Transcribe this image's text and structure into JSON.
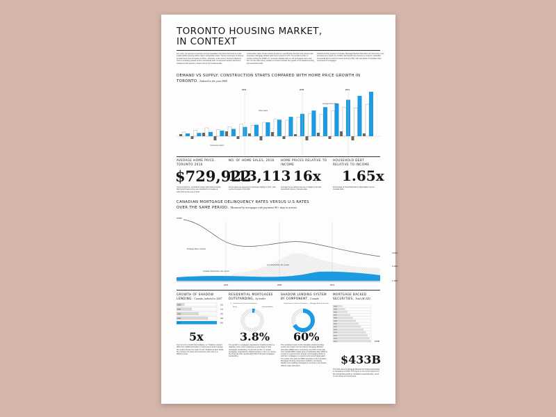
{
  "header": {
    "title_line1": "TORONTO HOUSING MARKET,",
    "title_line2": "IN CONTEXT",
    "intro": [
      "For years, the general consensus among Canadians has been that there is a real estate bubble growing within major metropolitan areas. Toronto continues to witness annual home price increases of 10%+. However, a few recent, housing indicators show a troubling upward trend in household debt, construction activity and home valuations that warrant a closer look at the fundamentals.",
      "construction starts remain steady despite an overall lower demand and interest rate increases. Mortgage default rates hover around 0.17%. To put that number in context, during the 2008 U.S. recession default rates on US mortgages were near 9%. On the other hand, pockets of concern include the growth in the shadow lending and securitized debt.",
      "shadow lending system in Canada. Mortgage Backed Securities are becoming more prevalent as a result. As of 2016, debt levels have become a concern, Canadian household debt to income hovers around 1.65x, with two thirds of Canadian debt comprised of mortgages."
    ]
  },
  "demand_supply": {
    "title": "DEMAND VS SUPPLY: CONSTRUCTION STARTS COMPARED WITH HOME PRICE GROWTH IN TORONTO.",
    "subtitle": "Indexed to the year 2000",
    "year_markers": [
      "2004",
      "2008",
      "2012"
    ],
    "annotations": {
      "construction": "Construction Starts",
      "home_sales": "Home Sales",
      "avg_price": "Average Home Price"
    }
  },
  "stats": [
    {
      "heading": "AVERAGE HOME PRICE, TORONTO 2016",
      "value": "$729,922",
      "desc": "Going forward to, centralized supply will prolong double digit growth were prices are expected to increase at 10%-15% by the end of 2017."
    },
    {
      "heading": "NO. OF HOME SALES, 2016",
      "value": "113,113",
      "desc": "Home sales are expected to decrease slightly in 2017, with a price forecast of 110,000."
    },
    {
      "heading": "HOME PRICES RELATIVE TO INCOME",
      "value": "16x",
      "desc": "Average home selling price as a multiple of annual household income, Canada-wide."
    },
    {
      "heading": "HOUSEHOLD DEBT RELATIVE TO INCOME",
      "value": "1.65x",
      "desc": "Percentage of household debt to disposable income, Canada-wide."
    }
  ],
  "delinquency": {
    "title_line1": "CANADIAN MORTGAGE DELINQUENCY RATES VERSUS U.S RATES",
    "title_line2": "OVER THE SAME PERIOD.",
    "subtitle": "Measured by mortgages with payments 90+ days in arrears",
    "y_left": "0.50%",
    "y_right": [
      "2.60%",
      "2.10%",
      "1.10%"
    ],
    "x_ticks": [
      "2004",
      "2008",
      "2012"
    ],
    "annotations": {
      "mortgage_rates": "Mortgage Rates, Canada",
      "cad_default": "Canadian Default Rate, 90+ arrears",
      "us_default": "U.S. Default Rate, 90+ arrears"
    }
  },
  "shadow_growth": {
    "title": "GROWTH OF SHADOW LENDING.",
    "subtitle": "Canada, indexed to 2007",
    "rows": [
      {
        "year": "2009",
        "value": "100"
      },
      {
        "year": "2011",
        "value": "170"
      },
      {
        "year": "2012",
        "value": "260"
      },
      {
        "year": "2013",
        "value": "380"
      },
      {
        "year": "2016",
        "value": "500"
      }
    ],
    "fills": [
      0.2,
      0.38,
      0.55,
      0.78,
      1.0
    ],
    "value": "5x",
    "desc": "Over time tiny Credit Intermediaries, or \"Shadow Lenders\" differ from traditional lenders in that a bank would manage the credit process from start to end. Shadow lenders divide the process into steps and outsource each step to a different entity."
  },
  "residential": {
    "title": "RESIDENTIAL MORTGAGES OUTSTANDING,",
    "subtitle": "by lender",
    "legend": [
      "Credit Unions & Caisses Populaires",
      "Banks",
      "Financial Bodies"
    ],
    "value": "3.8%",
    "desc": "The growth in mortgages originated by shadow lenders is relatively minor when viewed as a percentage of total mortgages outstanding. To put this number in context, mortgages originated by shadow lenders in the U.S. during the financial crisis represented 30% of all total mortgages outstanding."
  },
  "shadow_component": {
    "title": "SHADOW LENDING SYSTEM BY COMPONENT,",
    "subtitle": "Canada",
    "legend": [
      "Credit Unions & Caisses Populaires",
      "Mortgage Backed Securities"
    ],
    "value": "60%",
    "desc": "The constituent parts of the Canadian shadow lending system are broken out into assets. Mortgage Backed Securities (MBS) were comprising over 60% of the total. The Canada MBS market grew considerably after 2008 as a result of a government program encouraging banks to sell their mortgages to a government-owned aggregator. The lender then sells the MBS securities to the Canadian Mortgage Housing Corporation (CMHC), increasing liquidity and enabling mortgages to continue to be issued without major disruption."
  },
  "mbs": {
    "title": "MORTGAGE BACKED SECURITIES,",
    "subtitle": "Total ($CAD)",
    "years": [
      "2004",
      "2005",
      "2006",
      "2007",
      "2008",
      "2009",
      "2010",
      "2011",
      "2012",
      "2013",
      "2014",
      "2015",
      "2016"
    ],
    "fills": [
      0.25,
      0.32,
      0.38,
      0.45,
      0.52,
      0.6,
      0.67,
      0.73,
      0.8,
      0.86,
      0.91,
      0.96,
      1.0
    ],
    "end_label": "$433B",
    "value": "$433B",
    "desc": "The total value of Mortgage Backed Securities outstanding in Canada as of 2016. This figure is one of the reasons for the substantial growth in Canadian household debt, which is now sitting at record levels."
  },
  "colors": {
    "accent": "#1d9be0",
    "dark": "#666666",
    "background": "#d5b6ab",
    "paper": "#fdfdfd"
  }
}
